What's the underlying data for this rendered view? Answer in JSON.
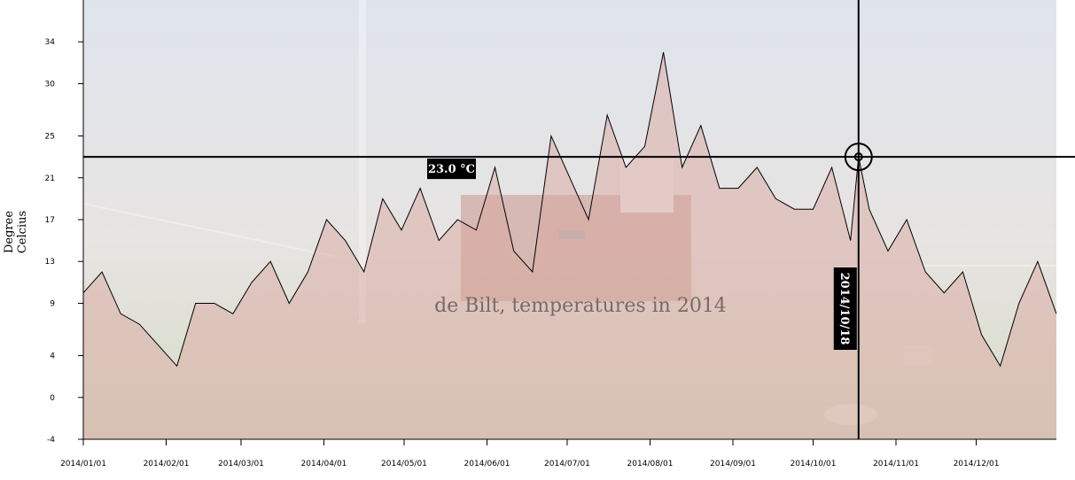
{
  "chart_data": {
    "type": "line",
    "title": "de Bilt, temperatures in 2014",
    "ylabel": [
      "Degree",
      "Celcius"
    ],
    "ylim": [
      -4,
      38
    ],
    "xlim": [
      "2014-01-01",
      "2014-12-31"
    ],
    "y_ticks": [
      -4,
      0,
      4,
      9,
      13,
      17,
      21,
      25,
      30,
      34
    ],
    "x_ticks": [
      "2014/01/01",
      "2014/02/01",
      "2014/03/01",
      "2014/04/01",
      "2014/05/01",
      "2014/06/01",
      "2014/07/01",
      "2014/08/01",
      "2014/09/01",
      "2014/10/01",
      "2014/11/01",
      "2014/12/01"
    ],
    "grid": false,
    "area_fill": true,
    "colors": {
      "line": "#000000",
      "area": "#d9a7a0",
      "background_top": "#d8dee7",
      "background_bottom": "#c8cfb9"
    },
    "crosshair": {
      "date": "2014-10-18",
      "value": 23.0,
      "date_label": "2014/10/18",
      "value_label": "23.0 °C"
    },
    "series": [
      {
        "x": [
          "2014-01-01",
          "2014-01-08",
          "2014-01-15",
          "2014-01-22",
          "2014-01-29",
          "2014-02-05",
          "2014-02-12",
          "2014-02-19",
          "2014-02-26",
          "2014-03-05",
          "2014-03-12",
          "2014-03-19",
          "2014-03-26",
          "2014-04-02",
          "2014-04-09",
          "2014-04-16",
          "2014-04-23",
          "2014-04-30",
          "2014-05-07",
          "2014-05-14",
          "2014-05-21",
          "2014-05-28",
          "2014-06-04",
          "2014-06-11",
          "2014-06-18",
          "2014-06-25",
          "2014-07-02",
          "2014-07-09",
          "2014-07-16",
          "2014-07-23",
          "2014-07-30",
          "2014-08-06",
          "2014-08-13",
          "2014-08-20",
          "2014-08-27",
          "2014-09-03",
          "2014-09-10",
          "2014-09-17",
          "2014-09-24",
          "2014-10-01",
          "2014-10-08",
          "2014-10-15",
          "2014-10-18",
          "2014-10-22",
          "2014-10-29",
          "2014-11-05",
          "2014-11-12",
          "2014-11-19",
          "2014-11-26",
          "2014-12-03",
          "2014-12-10",
          "2014-12-17",
          "2014-12-24",
          "2014-12-31"
        ],
        "values": [
          10,
          12,
          8,
          7,
          5,
          3,
          9,
          9,
          8,
          11,
          13,
          9,
          12,
          17,
          15,
          12,
          19,
          16,
          20,
          15,
          17,
          16,
          22,
          14,
          12,
          25,
          21,
          17,
          27,
          22,
          24,
          33,
          22,
          26,
          20,
          20,
          22,
          19,
          18,
          18,
          22,
          15,
          23,
          18,
          14,
          17,
          12,
          10,
          12,
          6,
          3,
          9,
          13,
          8
        ]
      }
    ]
  }
}
